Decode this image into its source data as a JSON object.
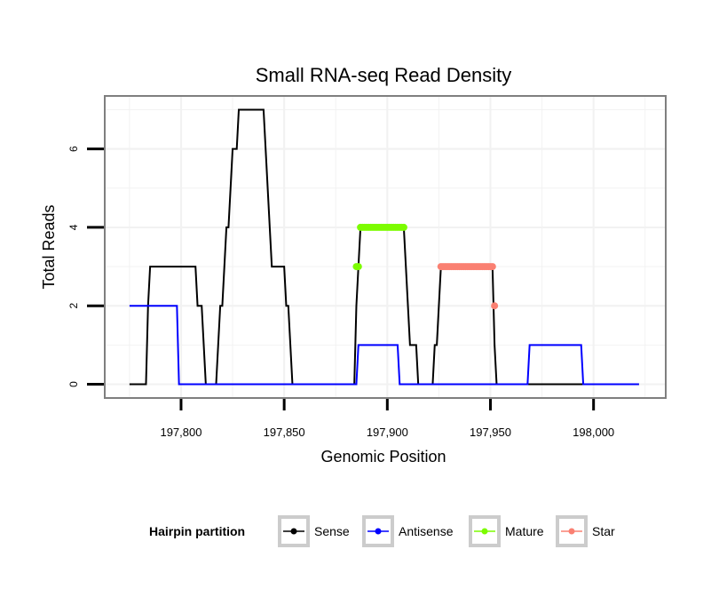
{
  "chart_data": {
    "type": "line",
    "title": "Small RNA-seq Read Density",
    "xlabel": "Genomic Position",
    "ylabel": "Total Reads",
    "xlim": [
      197763,
      198035
    ],
    "ylim": [
      -0.35,
      7.35
    ],
    "x_ticks": [
      197800,
      197850,
      197900,
      197950,
      198000
    ],
    "x_tick_labels": [
      "197,800",
      "197,850",
      "197,900",
      "197,950",
      "198,000"
    ],
    "y_ticks": [
      0,
      2,
      4,
      6
    ],
    "y_tick_labels": [
      "0",
      "2",
      "4",
      "6"
    ],
    "grid": true,
    "legend": {
      "title": "Hairpin partition",
      "position": "bottom",
      "entries": [
        {
          "key": "sense",
          "label": "Sense",
          "color": "#000000"
        },
        {
          "key": "antisense",
          "label": "Antisense",
          "color": "#0000ff"
        },
        {
          "key": "mature",
          "label": "Mature",
          "color": "#7cfc00"
        },
        {
          "key": "star",
          "label": "Star",
          "color": "#fa8072"
        }
      ]
    },
    "series": [
      {
        "name": "Sense",
        "color": "#000000",
        "mode": "line",
        "x": [
          197775,
          197783,
          197784,
          197785,
          197807,
          197808,
          197810,
          197811,
          197812,
          197817,
          197818,
          197819,
          197820,
          197821,
          197822,
          197823,
          197824,
          197825,
          197826,
          197827,
          197828,
          197829,
          197840,
          197841,
          197842,
          197843,
          197844,
          197845,
          197850,
          197851,
          197852,
          197853,
          197854,
          197884,
          197885,
          197886,
          197887,
          197908,
          197909,
          197910,
          197911,
          197912,
          197914,
          197915,
          197916,
          197917,
          197922,
          197923,
          197924,
          197925,
          197926,
          197927,
          197951,
          197952,
          197953,
          198022
        ],
        "y": [
          0,
          0,
          2,
          3,
          3,
          2,
          2,
          1,
          0,
          0,
          1,
          2,
          2,
          3,
          4,
          4,
          5,
          6,
          6,
          6,
          7,
          7,
          7,
          6,
          5,
          4,
          3,
          3,
          3,
          2,
          2,
          1,
          0,
          0,
          2,
          3,
          4,
          4,
          3,
          2,
          1,
          1,
          1,
          0,
          0,
          0,
          0,
          1,
          1,
          2,
          3,
          3,
          3,
          1,
          0,
          0
        ]
      },
      {
        "name": "Antisense",
        "color": "#0000ff",
        "mode": "line",
        "x": [
          197775,
          197798,
          197799,
          197885,
          197886,
          197905,
          197906,
          197968,
          197969,
          197994,
          197995,
          198022
        ],
        "y": [
          2,
          2,
          0,
          0,
          1,
          1,
          0,
          0,
          1,
          1,
          0,
          0
        ]
      },
      {
        "name": "Mature",
        "color": "#7cfc00",
        "mode": "points",
        "x": [
          197885,
          197886,
          197887,
          197888,
          197889,
          197890,
          197891,
          197892,
          197893,
          197894,
          197895,
          197896,
          197897,
          197898,
          197899,
          197900,
          197901,
          197902,
          197903,
          197904,
          197905,
          197906,
          197907,
          197908
        ],
        "y": [
          3,
          3,
          4,
          4,
          4,
          4,
          4,
          4,
          4,
          4,
          4,
          4,
          4,
          4,
          4,
          4,
          4,
          4,
          4,
          4,
          4,
          4,
          4,
          4
        ]
      },
      {
        "name": "Star",
        "color": "#fa8072",
        "mode": "points",
        "x": [
          197926,
          197927,
          197928,
          197929,
          197930,
          197931,
          197932,
          197933,
          197934,
          197935,
          197936,
          197937,
          197938,
          197939,
          197940,
          197941,
          197942,
          197943,
          197944,
          197945,
          197946,
          197947,
          197948,
          197949,
          197950,
          197951,
          197952
        ],
        "y": [
          3,
          3,
          3,
          3,
          3,
          3,
          3,
          3,
          3,
          3,
          3,
          3,
          3,
          3,
          3,
          3,
          3,
          3,
          3,
          3,
          3,
          3,
          3,
          3,
          3,
          3,
          2
        ]
      }
    ]
  }
}
